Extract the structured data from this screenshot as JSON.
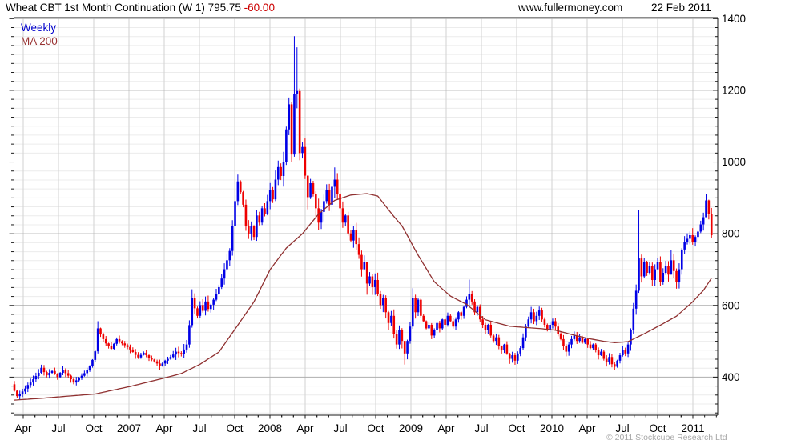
{
  "header": {
    "title": "Wheat CBT 1st Month Continuation (W 1) 795.75",
    "change": "-60.00",
    "website": "www.fullermoney.com",
    "date": "22 Feb 2011"
  },
  "legend": {
    "series1": "Weekly",
    "series2": "MA 200"
  },
  "footer": {
    "copyright": "© 2011 Stockcube Research Ltd"
  },
  "colors": {
    "up_bar": "#0000e6",
    "down_bar": "#ee0000",
    "ma_line": "#8f3030",
    "title_change": "#cc0000",
    "legend_weekly": "#0000cc",
    "legend_ma": "#993333",
    "grid_minor": "#ececec",
    "grid_vertical": "#d2d2d2",
    "grid_major": "#aeaeae",
    "axis": "#1a1a1a",
    "axis_text": "#000000",
    "copyright_text": "#a8a8a8"
  },
  "chart_data": {
    "type": "bar",
    "subtype": "weekly-ohlc-bars-with-ma",
    "title": "Wheat CBT 1st Month Continuation (W 1)",
    "last_price": 795.75,
    "last_change": -60.0,
    "y_axis": {
      "ticks": [
        400,
        600,
        800,
        1000,
        1200,
        1400
      ],
      "minor_step": 25,
      "range": [
        295,
        1405
      ],
      "side": "right",
      "grid": true
    },
    "x_axis": {
      "labels": [
        "Apr",
        "Jul",
        "Oct",
        "2007",
        "Apr",
        "Jul",
        "Oct",
        "2008",
        "Apr",
        "Jul",
        "Oct",
        "2009",
        "Apr",
        "Jul",
        "Oct",
        "2010",
        "Apr",
        "Jul",
        "Oct",
        "2011"
      ],
      "grid": true
    },
    "legend_position": "top-left",
    "open_first": 380,
    "weekly_closes": [
      362,
      347,
      353,
      360,
      368,
      378,
      385,
      394,
      403,
      412,
      426,
      414,
      405,
      412,
      417,
      408,
      400,
      412,
      421,
      411,
      404,
      394,
      385,
      391,
      397,
      404,
      411,
      420,
      431,
      448,
      472,
      536,
      519,
      506,
      494,
      487,
      479,
      493,
      506,
      500,
      494,
      489,
      484,
      477,
      470,
      462,
      455,
      462,
      468,
      461,
      454,
      449,
      444,
      438,
      431,
      438,
      446,
      451,
      456,
      463,
      471,
      467,
      464,
      477,
      491,
      545,
      621,
      592,
      571,
      601,
      585,
      611,
      590,
      602,
      616,
      633,
      651,
      675,
      701,
      726,
      752,
      821,
      891,
      946,
      916,
      881,
      821,
      799,
      821,
      791,
      851,
      831,
      871,
      856,
      891,
      921,
      896,
      951,
      986,
      961,
      1001,
      1091,
      1161,
      1021,
      1191,
      1198,
      1025,
      1042,
      962,
      902,
      941,
      911,
      871,
      831,
      861,
      891,
      921,
      881,
      931,
      951,
      911,
      871,
      831,
      851,
      801,
      781,
      811,
      771,
      741,
      701,
      721,
      661,
      681,
      651,
      671,
      631,
      601,
      621,
      581,
      551,
      571,
      521,
      491,
      531,
      501,
      466,
      501,
      541,
      621,
      581,
      616,
      571,
      556,
      536,
      546,
      516,
      531,
      551,
      536,
      561,
      546,
      571,
      556,
      541,
      561,
      581,
      571,
      596,
      616,
      631,
      611,
      581,
      596,
      561,
      546,
      531,
      546,
      516,
      501,
      511,
      486,
      476,
      491,
      466,
      451,
      461,
      446,
      466,
      481,
      511,
      541,
      561,
      581,
      556,
      571,
      586,
      561,
      546,
      531,
      546,
      556,
      541,
      521,
      506,
      486,
      471,
      491,
      506,
      516,
      501,
      511,
      496,
      506,
      491,
      481,
      491,
      476,
      461,
      471,
      451,
      441,
      456,
      436,
      429,
      446,
      461,
      476,
      466,
      491,
      531,
      591,
      641,
      731,
      681,
      721,
      691,
      711,
      671,
      701,
      721,
      666,
      691,
      711,
      686,
      726,
      696,
      666,
      701,
      756,
      776,
      786,
      796,
      776,
      791,
      806,
      826,
      846,
      893,
      855.75,
      795.75
    ],
    "extremes": {
      "31": [
        556,
        466
      ],
      "66": [
        645,
        538
      ],
      "83": [
        965,
        880
      ],
      "102": [
        1180,
        1075
      ],
      "103": [
        1168,
        1000
      ],
      "104": [
        1351,
        1015
      ],
      "105": [
        1320,
        1150
      ],
      "106": [
        1205,
        1005
      ],
      "109": [
        925,
        868
      ],
      "119": [
        985,
        900
      ],
      "131": [
        700,
        630
      ],
      "145": [
        500,
        435
      ],
      "148": [
        648,
        535
      ],
      "169": [
        672,
        600
      ],
      "184": [
        468,
        437
      ],
      "192": [
        596,
        550
      ],
      "205": [
        492,
        458
      ],
      "223": [
        443,
        419
      ],
      "232": [
        866,
        635
      ],
      "244": [
        755,
        688
      ],
      "257": [
        910,
        855
      ],
      "258": [
        895,
        840
      ],
      "259": [
        872,
        789
      ]
    },
    "volatility_eras": [
      [
        0,
        59,
        11
      ],
      [
        60,
        94,
        18
      ],
      [
        95,
        119,
        30
      ],
      [
        120,
        149,
        22
      ],
      [
        150,
        227,
        12
      ],
      [
        228,
        259,
        20
      ]
    ],
    "ma200": [
      [
        0,
        336
      ],
      [
        10,
        341
      ],
      [
        20,
        347
      ],
      [
        30,
        353
      ],
      [
        43,
        374
      ],
      [
        56,
        398
      ],
      [
        62,
        410
      ],
      [
        69,
        436
      ],
      [
        76,
        470
      ],
      [
        83,
        545
      ],
      [
        89,
        610
      ],
      [
        95,
        700
      ],
      [
        101,
        760
      ],
      [
        107,
        800
      ],
      [
        113,
        855
      ],
      [
        119,
        893
      ],
      [
        125,
        908
      ],
      [
        131,
        912
      ],
      [
        135,
        905
      ],
      [
        141,
        848
      ],
      [
        144,
        822
      ],
      [
        150,
        740
      ],
      [
        156,
        666
      ],
      [
        162,
        626
      ],
      [
        168,
        603
      ],
      [
        175,
        560
      ],
      [
        184,
        542
      ],
      [
        196,
        535
      ],
      [
        201,
        531
      ],
      [
        207,
        519
      ],
      [
        213,
        508
      ],
      [
        219,
        500
      ],
      [
        223,
        496
      ],
      [
        228,
        499
      ],
      [
        234,
        521
      ],
      [
        240,
        545
      ],
      [
        246,
        570
      ],
      [
        252,
        610
      ],
      [
        256,
        642
      ],
      [
        259,
        676
      ]
    ]
  }
}
